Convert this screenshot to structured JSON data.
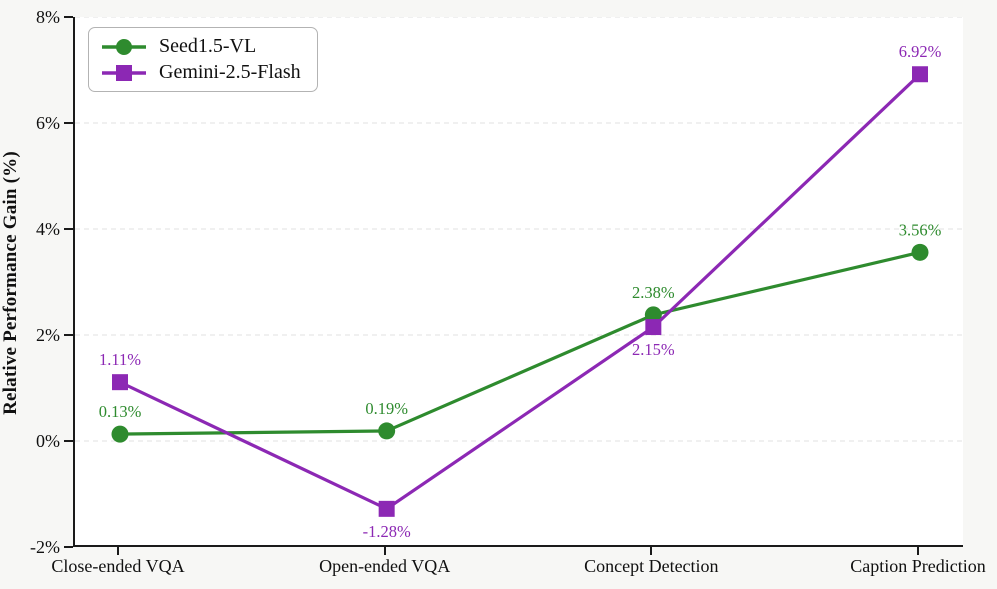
{
  "figure": {
    "background": "#f7f7f5",
    "plot_background": "#ffffff",
    "axis_color": "#1a1a1a",
    "grid_color": "#e8e8e8",
    "legend_border_color": "#b3b3b3"
  },
  "chart_data": {
    "type": "line",
    "title": "",
    "xlabel": "",
    "ylabel": "Relative Performance Gain (%)",
    "ylim": [
      -2,
      8
    ],
    "yticks": [
      -2,
      0,
      2,
      4,
      6,
      8
    ],
    "ytick_labels": [
      "-2%",
      "0%",
      "2%",
      "4%",
      "6%",
      "8%"
    ],
    "grid": "horizontal-dashed",
    "legend_position": "top-left",
    "categories": [
      "Close-ended VQA",
      "Open-ended VQA",
      "Concept Detection",
      "Caption Prediction"
    ],
    "series": [
      {
        "name": "Seed1.5-VL",
        "color": "#2e8b2e",
        "marker": "circle",
        "values": [
          0.13,
          0.19,
          2.38,
          3.56
        ],
        "point_labels": [
          "0.13%",
          "0.19%",
          "2.38%",
          "3.56%"
        ],
        "label_placement": [
          "above",
          "above",
          "above",
          "above"
        ]
      },
      {
        "name": "Gemini-2.5-Flash",
        "color": "#8c28b4",
        "marker": "square",
        "values": [
          1.11,
          -1.28,
          2.15,
          6.92
        ],
        "point_labels": [
          "1.11%",
          "-1.28%",
          "2.15%",
          "6.92%"
        ],
        "label_placement": [
          "above",
          "below",
          "below",
          "above"
        ]
      }
    ]
  }
}
